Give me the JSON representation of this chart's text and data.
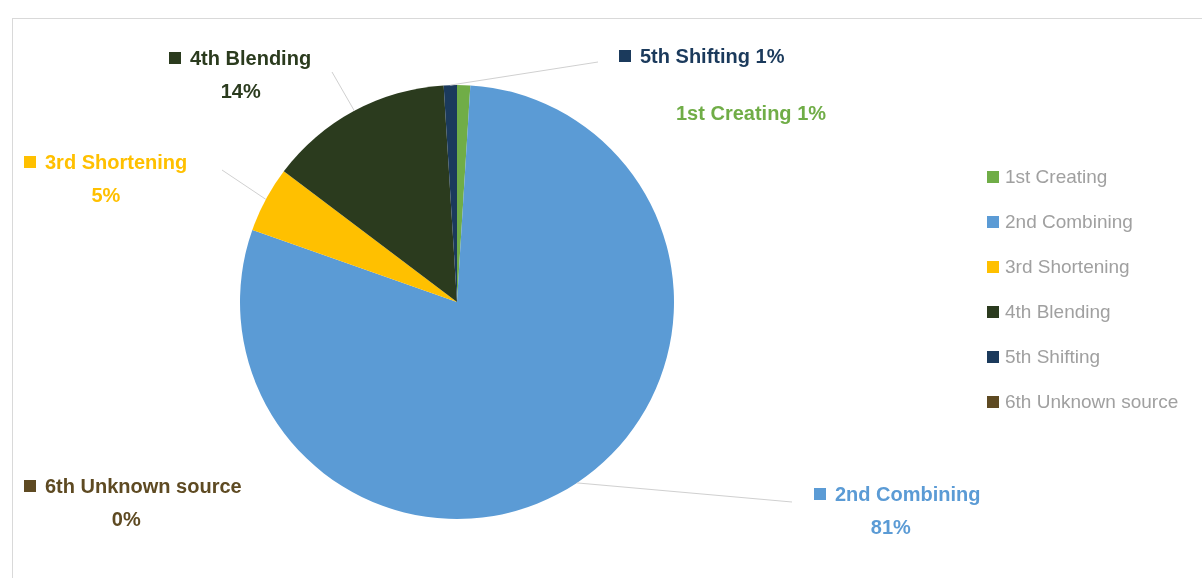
{
  "chart_data": {
    "type": "pie",
    "categories": [
      "1st Creating",
      "2nd Combining",
      "3rd Shortening",
      "4th Blending",
      "5th Shifting",
      "6th Unknown source"
    ],
    "values": [
      1,
      81,
      5,
      14,
      1,
      0
    ],
    "value_labels": [
      "1%",
      "81%",
      "5%",
      "14%",
      "1%",
      "0%"
    ],
    "colors": [
      "#70ad47",
      "#5b9bd5",
      "#ffc000",
      "#2b3b1e",
      "#1b3a5c",
      "#5e4a22"
    ],
    "legend": "right"
  }
}
